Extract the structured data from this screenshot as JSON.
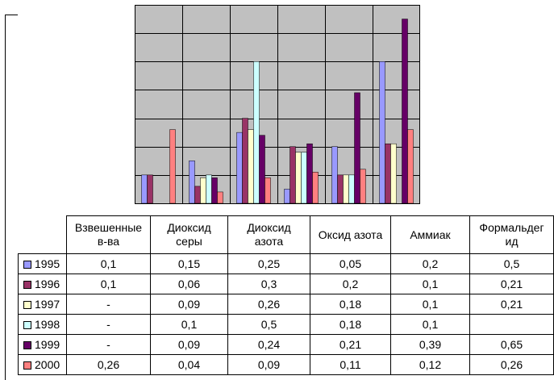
{
  "chart_data": {
    "type": "bar",
    "categories": [
      "Взвешенные в-ва",
      "Диоксид серы",
      "Диоксид азота",
      "Оксид азота",
      "Аммиак",
      "Формальдегид"
    ],
    "category_labels_display": [
      "Взвешенные\nв-ва",
      "Диоксид\nсеры",
      "Диоксид\nазота",
      "Оксид азота",
      "Аммиак",
      "Формальдег\nид"
    ],
    "series": [
      {
        "name": "1995",
        "color": "#9999ff",
        "values": [
          0.1,
          0.15,
          0.25,
          0.05,
          0.2,
          0.5
        ],
        "labels": [
          "0,1",
          "0,15",
          "0,25",
          "0,05",
          "0,2",
          "0,5"
        ]
      },
      {
        "name": "1996",
        "color": "#993366",
        "values": [
          0.1,
          0.06,
          0.3,
          0.2,
          0.1,
          0.21
        ],
        "labels": [
          "0,1",
          "0,06",
          "0,3",
          "0,2",
          "0,1",
          "0,21"
        ]
      },
      {
        "name": "1997",
        "color": "#ffffcc",
        "values": [
          null,
          0.09,
          0.26,
          0.18,
          0.1,
          0.21
        ],
        "labels": [
          "-",
          "0,09",
          "0,26",
          "0,18",
          "0,1",
          "0,21"
        ]
      },
      {
        "name": "1998",
        "color": "#ccffff",
        "values": [
          null,
          0.1,
          0.5,
          0.18,
          0.1,
          null
        ],
        "labels": [
          "-",
          "0,1",
          "0,5",
          "0,18",
          "0,1",
          ""
        ]
      },
      {
        "name": "1999",
        "color": "#660066",
        "values": [
          null,
          0.09,
          0.24,
          0.21,
          0.39,
          0.65
        ],
        "labels": [
          "-",
          "0,09",
          "0,24",
          "0,21",
          "0,39",
          "0,65"
        ]
      },
      {
        "name": "2000",
        "color": "#ff8080",
        "values": [
          0.26,
          0.04,
          0.09,
          0.11,
          0.12,
          0.26
        ],
        "labels": [
          "0,26",
          "0,04",
          "0,09",
          "0,11",
          "0,12",
          "0,26"
        ]
      }
    ],
    "ylim": [
      0,
      0.7
    ],
    "grid": true,
    "plot_background": "#c0c0c0",
    "legend": "data-table"
  }
}
